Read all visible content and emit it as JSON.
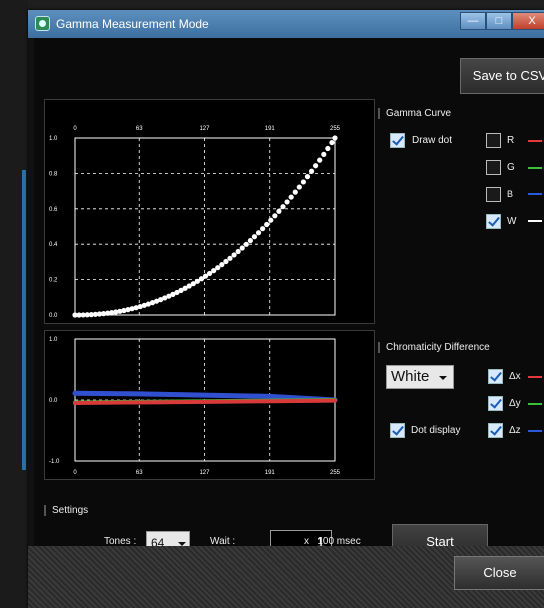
{
  "window": {
    "title": "Gamma Measurement Mode",
    "controls": {
      "minimize": "—",
      "maximize": "□",
      "close": "X"
    }
  },
  "toolbar": {
    "save_label": "Save to CSV"
  },
  "gamma_panel": {
    "label": "Gamma Curve",
    "draw_dot_label": "Draw dot",
    "draw_dot_checked": true,
    "channels": [
      {
        "label": "R",
        "checked": false,
        "color": "#e23a3a"
      },
      {
        "label": "G",
        "checked": false,
        "color": "#3ac03a"
      },
      {
        "label": "B",
        "checked": false,
        "color": "#2a5ad8"
      },
      {
        "label": "W",
        "checked": true,
        "color": "#ffffff"
      }
    ]
  },
  "chroma_panel": {
    "label": "Chromaticity Difference",
    "color_select": "White",
    "dot_display_label": "Dot display",
    "dot_display_checked": true,
    "deltas": [
      {
        "label": "Δx",
        "checked": true,
        "color": "#e23a3a"
      },
      {
        "label": "Δy",
        "checked": true,
        "color": "#3ac03a"
      },
      {
        "label": "Δz",
        "checked": true,
        "color": "#2a5ad8"
      }
    ]
  },
  "settings": {
    "label": "Settings",
    "tones_label": "Tones :",
    "tones_value": "64",
    "wait_label": "Wait :",
    "wait_value": "1",
    "wait_unit": "x   100 msec",
    "start_label": "Start"
  },
  "footer": {
    "close_label": "Close"
  },
  "chart_data": [
    {
      "type": "scatter",
      "x_ticks": [
        "0",
        "63",
        "127",
        "191",
        "255"
      ],
      "y_ticks": [
        "1.0",
        "0.8",
        "0.6",
        "0.4",
        "0.2",
        "0.0"
      ],
      "xlim": [
        0,
        255
      ],
      "ylim": [
        0,
        1
      ],
      "grid": true,
      "series": [
        {
          "color": "#ffffff",
          "gamma": 2.2,
          "x_step": 4
        }
      ]
    },
    {
      "type": "line",
      "x_ticks": [
        "0",
        "63",
        "127",
        "191",
        "255"
      ],
      "y_ticks": [
        "1.0",
        "0.0",
        "-1.0"
      ],
      "xlim": [
        0,
        255
      ],
      "ylim": [
        -1,
        1
      ],
      "grid": true,
      "series": [
        {
          "color": "#3050d0",
          "x": [
            0,
            63,
            127,
            191,
            255
          ],
          "y": [
            0.11,
            0.1,
            0.08,
            0.06,
            0.0
          ]
        },
        {
          "color": "#3ab43a",
          "x": [
            0,
            63,
            127,
            191,
            255
          ],
          "y": [
            -0.04,
            -0.03,
            -0.02,
            -0.01,
            0.0
          ]
        },
        {
          "color": "#d83a3a",
          "x": [
            0,
            63,
            127,
            191,
            255
          ],
          "y": [
            -0.05,
            -0.04,
            -0.03,
            -0.02,
            -0.01
          ]
        }
      ]
    }
  ]
}
